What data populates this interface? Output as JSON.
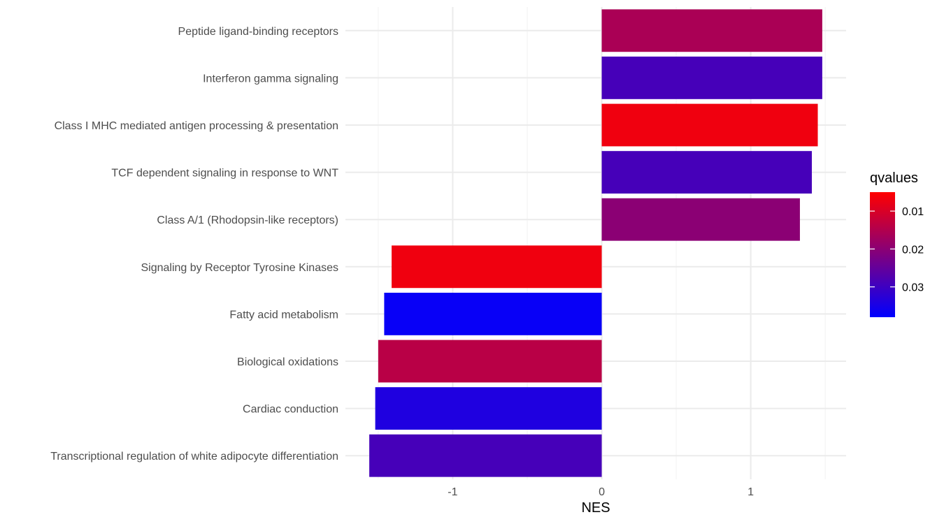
{
  "chart_data": {
    "type": "bar",
    "orientation": "horizontal",
    "categories": [
      "Peptide ligand-binding receptors",
      "Interferon gamma signaling",
      "Class I MHC mediated antigen processing & presentation",
      "TCF dependent signaling in response to WNT",
      "Class A/1 (Rhodopsin-like receptors)",
      "Signaling by Receptor Tyrosine Kinases",
      "Fatty acid metabolism",
      "Biological oxidations",
      "Cardiac conduction",
      "Transcriptional regulation of white adipocyte differentiation"
    ],
    "values": [
      1.48,
      1.48,
      1.45,
      1.41,
      1.33,
      -1.41,
      -1.46,
      -1.5,
      -1.52,
      -1.56
    ],
    "qvalues": [
      0.016,
      0.029,
      0.007,
      0.029,
      0.02,
      0.007,
      0.037,
      0.014,
      0.034,
      0.029
    ],
    "xlabel": "NES",
    "ylabel": "",
    "xlim": [
      -1.72,
      1.64
    ],
    "xticks": [
      -1,
      0,
      1
    ],
    "xtick_labels": [
      "-1",
      "0",
      "1"
    ],
    "grid": true,
    "legend": {
      "title": "qvalues",
      "position": "right",
      "type": "colorbar",
      "range": [
        0.005,
        0.038
      ],
      "ticks": [
        0.01,
        0.02,
        0.03
      ],
      "tick_labels": [
        "0.01",
        "0.02",
        "0.03"
      ],
      "low_color": "#ff0000",
      "high_color": "#0000ff"
    }
  }
}
